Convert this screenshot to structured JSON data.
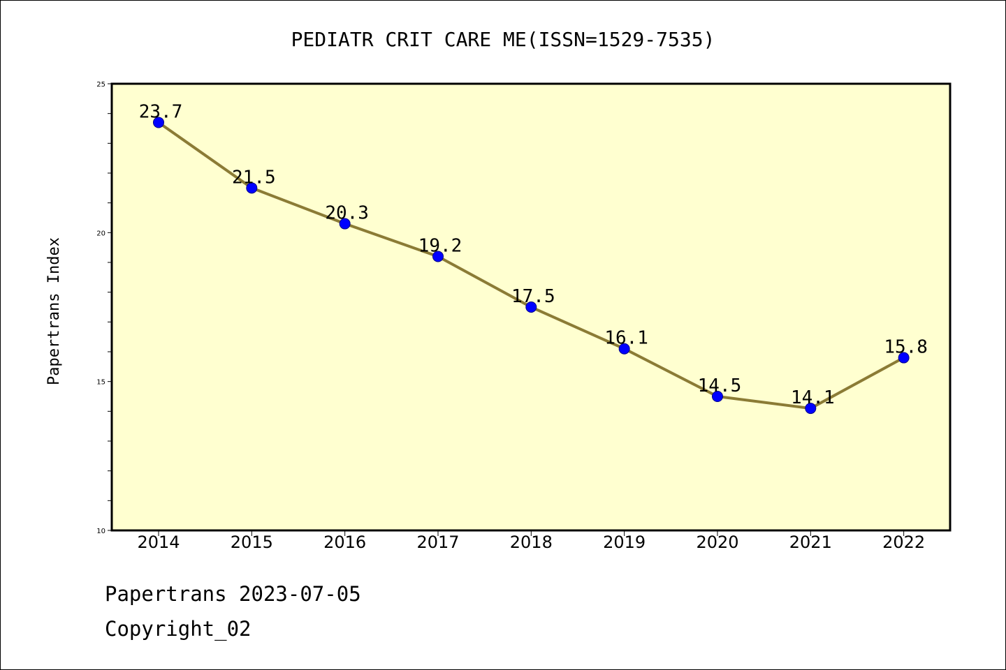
{
  "chart_data": {
    "type": "line",
    "title": "PEDIATR CRIT CARE ME(ISSN=1529-7535)",
    "xlabel": "",
    "ylabel": "Papertrans Index",
    "categories": [
      "2014",
      "2015",
      "2016",
      "2017",
      "2018",
      "2019",
      "2020",
      "2021",
      "2022"
    ],
    "series": [
      {
        "values": [
          23.7,
          21.5,
          20.3,
          19.2,
          17.5,
          16.1,
          14.5,
          14.1,
          15.8
        ],
        "labels": [
          "23.7",
          "21.5",
          "20.3",
          "19.2",
          "17.5",
          "16.1",
          "14.5",
          "14.1",
          "15.8"
        ]
      }
    ],
    "ylim": [
      10,
      25
    ],
    "y_ticks": [
      "10",
      "15",
      "20",
      "25"
    ],
    "y_minor_step": 1,
    "grid": false,
    "colors": {
      "plot_background": "#FFFFD0",
      "line": "#8B7B35",
      "marker": "#0000FF",
      "marker_edge": "#00008B",
      "axes": "#000000"
    }
  },
  "footer": {
    "date_text": "Papertrans 2023-07-05",
    "copyright_text": "Copyright_02"
  }
}
